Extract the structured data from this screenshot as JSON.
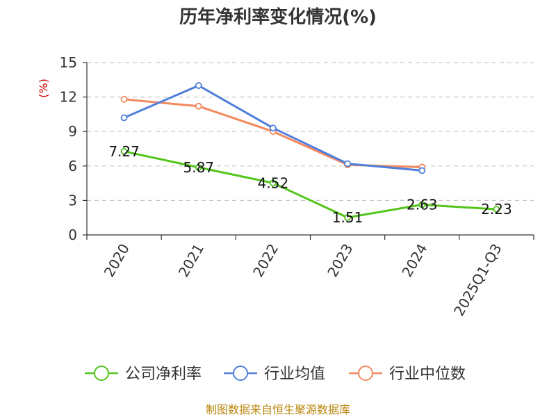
{
  "source_note": "制图数据来自恒生聚源数据库",
  "chart_data": {
    "type": "line",
    "title": "历年净利率变化情况(%)",
    "ylabel": "(%)",
    "xlabel": "",
    "categories": [
      "2020",
      "2021",
      "2022",
      "2023",
      "2024",
      "2025Q1-Q3"
    ],
    "ylim": [
      0,
      15
    ],
    "yticks": [
      0,
      3,
      6,
      9,
      12,
      15
    ],
    "grid": true,
    "legend_position": "bottom",
    "series": [
      {
        "name": "公司净利率",
        "color": "#52c41a",
        "values": [
          7.27,
          5.87,
          4.52,
          1.51,
          2.63,
          2.23
        ],
        "labels": [
          "7.27",
          "5.87",
          "4.52",
          "1.51",
          "2.63",
          "2.23"
        ]
      },
      {
        "name": "行业均值",
        "color": "#4f7fdb",
        "values": [
          10.2,
          13.0,
          9.3,
          6.2,
          5.6,
          null
        ]
      },
      {
        "name": "行业中位数",
        "color": "#f4895f",
        "values": [
          11.8,
          11.2,
          9.0,
          6.1,
          5.9,
          null
        ]
      }
    ]
  }
}
